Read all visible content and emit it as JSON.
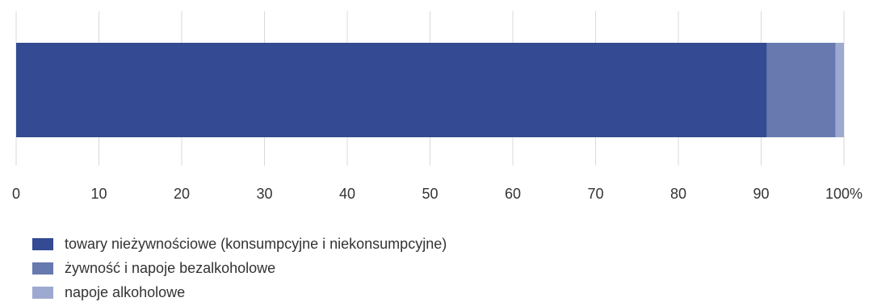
{
  "chart_data": {
    "type": "bar",
    "orientation": "horizontal",
    "stacked": true,
    "categories": [
      ""
    ],
    "series": [
      {
        "name": "towary nieżywnościowe (konsumpcyjne i niekonsumpcyjne)",
        "values": [
          90.7
        ],
        "color": "#344a92"
      },
      {
        "name": "żywność i napoje bezalkoholowe",
        "values": [
          8.3
        ],
        "color": "#6779ae"
      },
      {
        "name": "napoje alkoholowe",
        "values": [
          1.0
        ],
        "color": "#9da9d0"
      }
    ],
    "xlim": [
      0,
      100
    ],
    "x_ticks": [
      "0",
      "10",
      "20",
      "30",
      "40",
      "50",
      "60",
      "70",
      "80",
      "90",
      "100%"
    ],
    "grid": true,
    "legend_position": "bottom-left"
  }
}
